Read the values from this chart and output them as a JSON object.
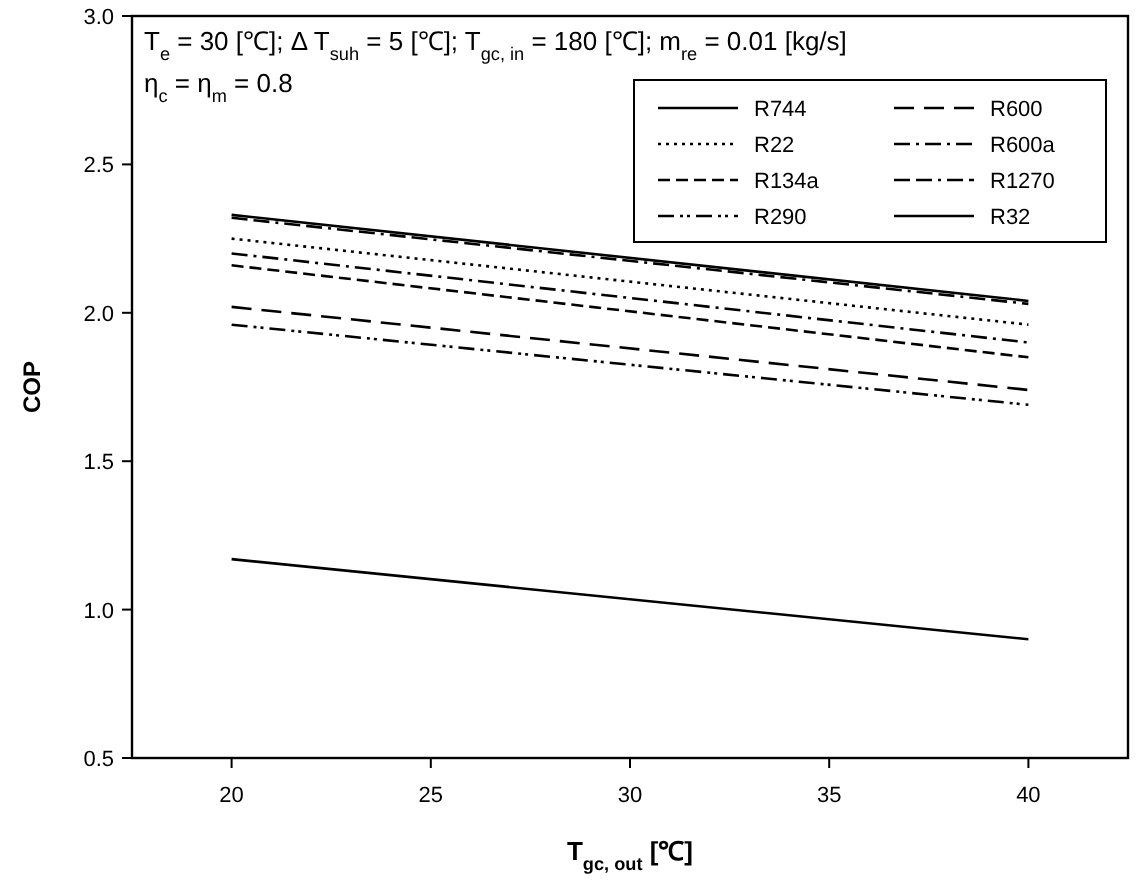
{
  "chart_data": {
    "type": "line",
    "xlabel": "T$_{gc, out}$ [℃]",
    "ylabel": "COP",
    "annotations": [
      "T$_{e}$ = 30 [℃]; Δ  T$_{suh}$ = 5 [℃]; T$_{gc, in}$ = 180 [℃]; m$_{re}$ = 0.01 [kg/s]",
      "η$_{c}$ = η$_{m}$ = 0.8"
    ],
    "x": [
      20,
      40
    ],
    "xlim": [
      17.5,
      42.5
    ],
    "xticks": [
      20,
      25,
      30,
      35,
      40
    ],
    "ylim": [
      0.5,
      3.0
    ],
    "yticks": [
      0.5,
      {
        "value": 1,
        "label": "1.0"
      },
      1.5,
      {
        "value": 2,
        "label": "2.0"
      },
      2.5,
      {
        "value": 3,
        "label": "3.0"
      }
    ],
    "legend": "top right",
    "grid": false,
    "marker": "none",
    "series": [
      {
        "name": "R744",
        "color": "#000000",
        "line_style": "solid",
        "values": [
          1.17,
          0.9
        ]
      },
      {
        "name": "R22",
        "color": "#000000",
        "line_style": "dotted",
        "values": [
          2.25,
          1.96
        ]
      },
      {
        "name": "R134a",
        "color": "#000000",
        "line_style": "dashed",
        "values": [
          2.16,
          1.85
        ]
      },
      {
        "name": "R290",
        "color": "#000000",
        "line_style": "dashdotdot",
        "values": [
          1.96,
          1.69
        ]
      },
      {
        "name": "R600",
        "color": "#000000",
        "line_style": "longdash",
        "values": [
          2.02,
          1.74
        ]
      },
      {
        "name": "R600a",
        "color": "#000000",
        "line_style": "dashdot",
        "values": [
          2.2,
          1.9
        ]
      },
      {
        "name": "R1270",
        "color": "#000000",
        "line_style": "dashdashdot",
        "values": [
          2.32,
          2.03
        ]
      },
      {
        "name": "R32",
        "color": "#000000",
        "line_style": "solid",
        "values": [
          2.33,
          2.04
        ]
      }
    ]
  }
}
